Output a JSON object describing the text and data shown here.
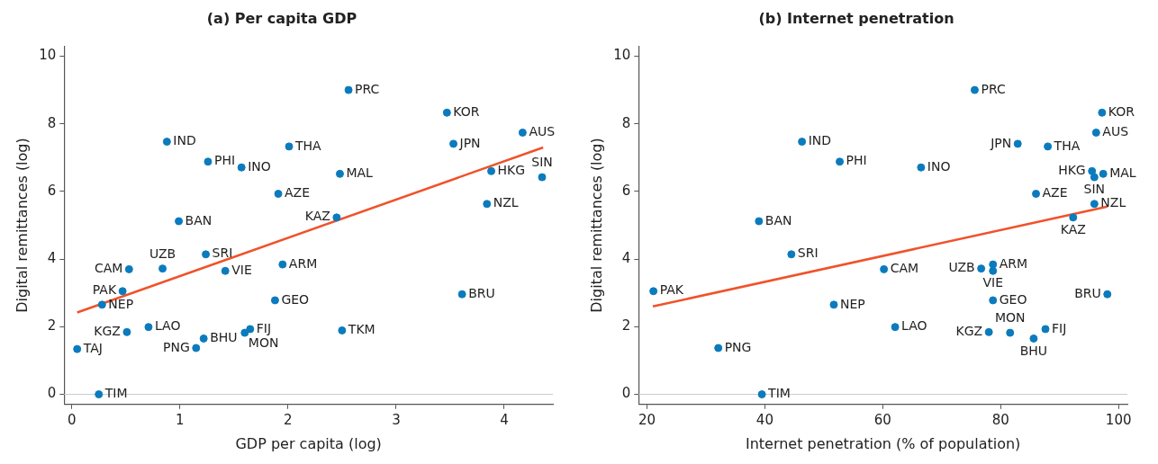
{
  "chart_data": [
    {
      "type": "scatter",
      "title": "(a) Per capita GDP",
      "xlabel": "GDP per capita (log)",
      "ylabel": "Digital remittances (log)",
      "xlim": [
        -0.07,
        4.45
      ],
      "xticks": [
        0,
        1,
        2,
        3,
        4
      ],
      "ylim": [
        -0.3,
        10.3
      ],
      "yticks": [
        0,
        2,
        4,
        6,
        8,
        10
      ],
      "grid": false,
      "legend": false,
      "ref_lines": [
        {
          "axis": "y",
          "value": 0,
          "color": "#cccccc"
        }
      ],
      "series": [
        {
          "marker": "circle",
          "color": "#0b7bbd",
          "x": [
            2.56,
            3.47,
            4.17,
            3.53,
            3.88,
            4.35,
            3.84,
            2.48,
            2.45,
            2.5,
            3.61,
            2.01,
            0.88,
            1.26,
            1.57,
            1.91,
            0.99,
            1.24,
            0.53,
            0.84,
            1.42,
            1.95,
            0.47,
            1.88,
            0.28,
            0.71,
            0.51,
            1.22,
            1.65,
            1.6,
            1.15,
            0.05,
            0.25
          ],
          "values": [
            9.0,
            8.33,
            7.74,
            7.41,
            6.6,
            6.42,
            5.63,
            6.52,
            5.23,
            1.89,
            2.96,
            7.33,
            7.47,
            6.88,
            6.71,
            5.93,
            5.12,
            4.14,
            3.7,
            3.72,
            3.65,
            3.84,
            3.05,
            2.78,
            2.65,
            1.99,
            1.84,
            1.65,
            1.93,
            1.82,
            1.37,
            1.34,
            0
          ],
          "value_labels": [
            "PRC",
            "KOR",
            "AUS",
            "JPN",
            "HKG",
            "SIN",
            "NZL",
            "MAL",
            "KAZ",
            "TKM",
            "BRU",
            "THA",
            "IND",
            "PHI",
            "INO",
            "AZE",
            "BAN",
            "SRI",
            "CAM",
            "UZB",
            "VIE",
            "ARM",
            "PAK",
            "GEO",
            "NEP",
            "LAO",
            "KGZ",
            "BHU",
            "FIJ",
            "MON",
            "PNG",
            "TAJ",
            "TIM"
          ]
        },
        {
          "type": "line",
          "color": "#f0522a",
          "x": [
            0.05,
            4.36
          ],
          "values": [
            2.42,
            7.3
          ]
        }
      ]
    },
    {
      "type": "scatter",
      "title": "(b) Internet penetration",
      "xlabel": "Internet penetration (% of population)",
      "ylabel": "Digital remittances (log)",
      "xlim": [
        18.6,
        101.5
      ],
      "xticks": [
        20,
        40,
        60,
        80,
        100
      ],
      "ylim": [
        -0.3,
        10.3
      ],
      "yticks": [
        0,
        2,
        4,
        6,
        8,
        10
      ],
      "grid": false,
      "legend": false,
      "ref_lines": [
        {
          "axis": "y",
          "value": 0,
          "color": "#cccccc"
        }
      ],
      "series": [
        {
          "marker": "circle",
          "color": "#0b7bbd",
          "x": [
            21.1,
            32.1,
            39.5,
            39.0,
            44.5,
            46.3,
            52.7,
            51.7,
            66.5,
            60.2,
            62.1,
            75.6,
            82.9,
            88.0,
            86.0,
            76.7,
            78.7,
            78.7,
            78.7,
            78.0,
            81.6,
            85.6,
            87.6,
            97.2,
            96.2,
            95.5,
            97.4,
            95.9,
            95.9,
            92.3,
            98.1
          ],
          "values": [
            3.05,
            1.37,
            0,
            5.12,
            4.14,
            7.47,
            6.88,
            2.65,
            6.71,
            3.7,
            1.99,
            9.0,
            7.41,
            7.33,
            5.93,
            3.72,
            3.84,
            3.65,
            2.78,
            1.84,
            1.82,
            1.65,
            1.93,
            8.33,
            7.74,
            6.6,
            6.52,
            6.42,
            5.63,
            5.23,
            2.96
          ],
          "value_labels": [
            "PAK",
            "PNG",
            "TIM",
            "BAN",
            "SRI",
            "IND",
            "PHI",
            "NEP",
            "INO",
            "CAM",
            "LAO",
            "PRC",
            "JPN",
            "THA",
            "AZE",
            "UZB",
            "ARM",
            "VIE",
            "GEO",
            "KGZ",
            "MON",
            "BHU",
            "FIJ",
            "KOR",
            "AUS",
            "HKG",
            "MAL",
            "SIN",
            "NZL",
            "KAZ",
            "BRU"
          ]
        },
        {
          "type": "line",
          "color": "#f0522a",
          "x": [
            21.0,
            98.1
          ],
          "values": [
            2.6,
            5.55
          ]
        }
      ]
    }
  ]
}
